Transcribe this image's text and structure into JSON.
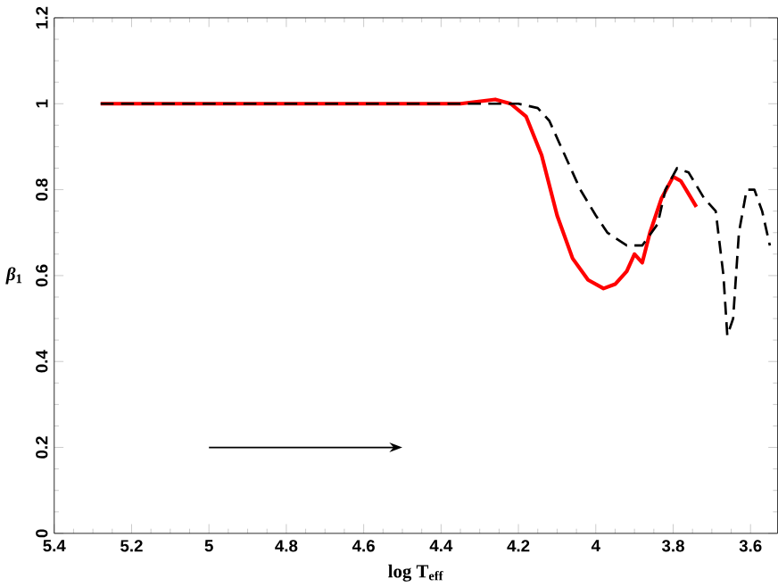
{
  "chart_data": {
    "type": "line",
    "xlabel": "log T$_{eff}$",
    "ylabel": "*β*$_{1}$",
    "xlim": [
      5.4,
      3.53
    ],
    "ylim": [
      0,
      1.2
    ],
    "xticks": [
      5.4,
      5.2,
      5,
      4.8,
      4.6,
      4.4,
      4.2,
      4,
      3.8,
      3.6
    ],
    "yticks": [
      0,
      0.2,
      0.4,
      0.6,
      0.8,
      1,
      1.2
    ],
    "grid": false,
    "series": [
      {
        "color": "#ff0000",
        "line_style": "solid",
        "x": [
          5.28,
          5.0,
          4.7,
          4.5,
          4.35,
          4.26,
          4.22,
          4.18,
          4.14,
          4.1,
          4.06,
          4.02,
          3.98,
          3.95,
          3.92,
          3.9,
          3.88,
          3.86,
          3.83,
          3.8,
          3.78,
          3.76,
          3.74
        ],
        "values": [
          1.0,
          1.0,
          1.0,
          1.0,
          1.0,
          1.01,
          1.0,
          0.97,
          0.88,
          0.74,
          0.64,
          0.59,
          0.57,
          0.58,
          0.61,
          0.65,
          0.63,
          0.7,
          0.78,
          0.83,
          0.82,
          0.79,
          0.76
        ]
      },
      {
        "color": "#000000",
        "line_style": "dashed",
        "x": [
          5.28,
          5.0,
          4.7,
          4.4,
          4.2,
          4.15,
          4.12,
          4.08,
          4.04,
          4.0,
          3.97,
          3.92,
          3.88,
          3.84,
          3.82,
          3.79,
          3.76,
          3.72,
          3.69,
          3.67,
          3.66,
          3.645,
          3.63,
          3.61,
          3.59,
          3.57,
          3.55
        ],
        "values": [
          1.0,
          1.0,
          1.0,
          1.0,
          1.0,
          0.99,
          0.96,
          0.88,
          0.8,
          0.74,
          0.7,
          0.67,
          0.67,
          0.72,
          0.8,
          0.85,
          0.84,
          0.78,
          0.75,
          0.6,
          0.46,
          0.5,
          0.7,
          0.8,
          0.8,
          0.75,
          0.67
        ]
      }
    ]
  }
}
